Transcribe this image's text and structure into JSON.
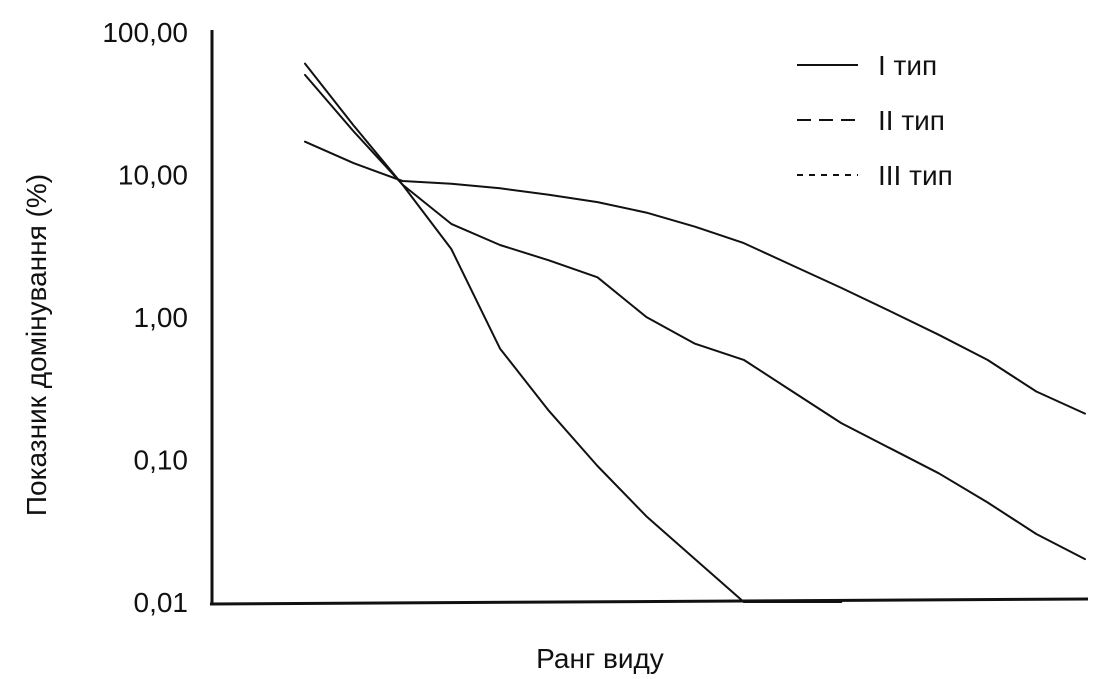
{
  "chart_data": {
    "type": "line",
    "title": "",
    "xlabel": "Ранг виду",
    "ylabel": "Показник домінування (%)",
    "yscale": "log",
    "ylim": [
      0.01,
      100
    ],
    "yticks": [
      100,
      10,
      1,
      0.1,
      0.01
    ],
    "ytick_labels": [
      "100,00",
      "10,00",
      "1,00",
      "0,10",
      "0,01"
    ],
    "xlim": [
      1,
      17
    ],
    "grid": false,
    "legend_position": "top-right",
    "x": [
      1,
      2,
      3,
      4,
      5,
      6,
      7,
      8,
      9,
      10,
      11,
      12,
      13,
      14,
      15,
      16,
      17
    ],
    "series": [
      {
        "name": "I тип",
        "dash": "solid",
        "x": [
          1,
          2,
          3,
          4,
          5,
          6,
          7,
          8,
          9,
          10,
          11,
          12,
          13,
          14,
          15,
          16,
          17
        ],
        "values": [
          17,
          12,
          9,
          8.6,
          8,
          7.2,
          6.4,
          5.4,
          4.3,
          3.3,
          2.3,
          1.6,
          1.1,
          0.75,
          0.5,
          0.3,
          0.21
        ]
      },
      {
        "name": "II тип",
        "dash": "dashed",
        "x": [
          1,
          2,
          3,
          4,
          5,
          6,
          7,
          8,
          9,
          10,
          11,
          12,
          13,
          14,
          15,
          16,
          17
        ],
        "values": [
          60,
          22,
          8.5,
          4.5,
          3.2,
          2.5,
          1.9,
          1.0,
          0.65,
          0.5,
          0.3,
          0.18,
          0.12,
          0.08,
          0.05,
          0.03,
          0.02
        ]
      },
      {
        "name": "III тип",
        "dash": "dotted",
        "x": [
          1,
          2,
          3,
          4,
          5,
          6,
          7,
          8,
          9,
          10,
          11,
          12
        ],
        "values": [
          50,
          20,
          8.5,
          3.0,
          0.6,
          0.22,
          0.09,
          0.04,
          0.02,
          0.01,
          0.01,
          0.01
        ]
      }
    ]
  }
}
